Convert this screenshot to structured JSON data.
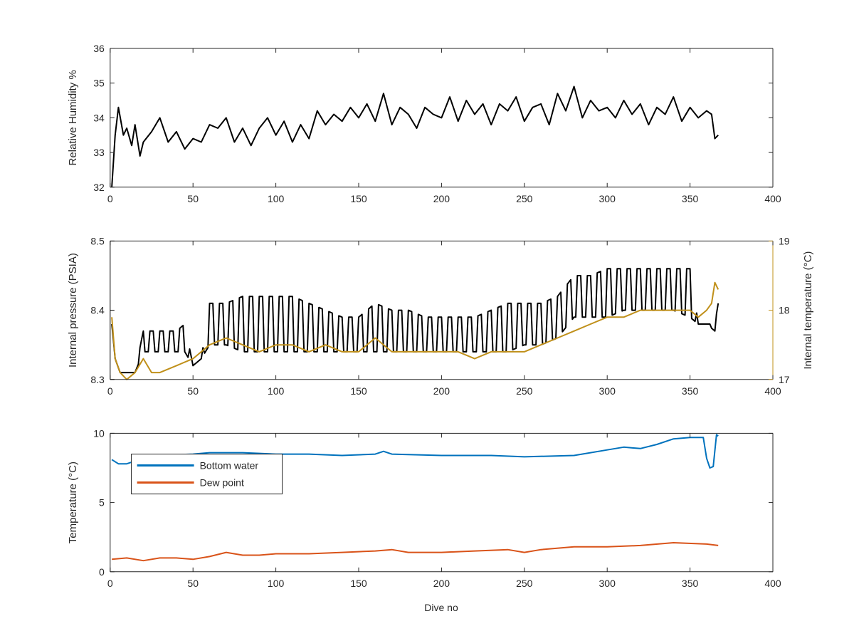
{
  "figure": {
    "xlabel": "Dive no"
  },
  "chart_data": [
    {
      "type": "line",
      "xlim": [
        0,
        400
      ],
      "ylim": [
        32,
        36
      ],
      "xticks": [
        0,
        50,
        100,
        150,
        200,
        250,
        300,
        350,
        400
      ],
      "yticks": [
        32,
        33,
        34,
        35,
        36
      ],
      "xlabel": "",
      "ylabel": "Relative Humidity %",
      "grid": false,
      "series": [
        {
          "color": "#000000",
          "x": [
            1,
            3,
            5,
            8,
            10,
            13,
            15,
            18,
            20,
            25,
            30,
            35,
            40,
            45,
            50,
            55,
            60,
            65,
            70,
            75,
            80,
            85,
            90,
            95,
            100,
            105,
            110,
            115,
            120,
            125,
            130,
            135,
            140,
            145,
            150,
            155,
            160,
            165,
            170,
            175,
            180,
            185,
            190,
            195,
            200,
            205,
            210,
            215,
            220,
            225,
            230,
            235,
            240,
            245,
            250,
            255,
            260,
            265,
            270,
            275,
            280,
            285,
            290,
            295,
            300,
            305,
            310,
            315,
            320,
            325,
            330,
            335,
            340,
            345,
            350,
            355,
            360,
            363,
            365,
            367
          ],
          "y": [
            32.0,
            33.5,
            34.3,
            33.5,
            33.7,
            33.2,
            33.8,
            32.9,
            33.3,
            33.6,
            34.0,
            33.3,
            33.6,
            33.1,
            33.4,
            33.3,
            33.8,
            33.7,
            34.0,
            33.3,
            33.7,
            33.2,
            33.7,
            34.0,
            33.5,
            33.9,
            33.3,
            33.8,
            33.4,
            34.2,
            33.8,
            34.1,
            33.9,
            34.3,
            34.0,
            34.4,
            33.9,
            34.7,
            33.8,
            34.3,
            34.1,
            33.7,
            34.3,
            34.1,
            34.0,
            34.6,
            33.9,
            34.5,
            34.1,
            34.4,
            33.8,
            34.4,
            34.2,
            34.6,
            33.9,
            34.3,
            34.4,
            33.8,
            34.7,
            34.2,
            34.9,
            34.0,
            34.5,
            34.2,
            34.3,
            34.0,
            34.5,
            34.1,
            34.4,
            33.8,
            34.3,
            34.1,
            34.6,
            33.9,
            34.3,
            34.0,
            34.2,
            34.1,
            33.4,
            33.5
          ]
        }
      ]
    },
    {
      "type": "line",
      "xlim": [
        0,
        400
      ],
      "ylim": [
        8.3,
        8.5
      ],
      "y2lim": [
        17,
        19
      ],
      "xticks": [
        0,
        50,
        100,
        150,
        200,
        250,
        300,
        350,
        400
      ],
      "yticks": [
        8.3,
        8.4,
        8.5
      ],
      "y2ticks": [
        17,
        18,
        19
      ],
      "xlabel": "",
      "ylabel": "Internal pressure (PSIA)",
      "y2label": "Internal temperature (°C)",
      "y2color": "#c0901a",
      "grid": false,
      "series": [
        {
          "axis": "left",
          "color": "#000000",
          "x": [
            1,
            3,
            6,
            10,
            15,
            20,
            30,
            40,
            45,
            50,
            55,
            60,
            70,
            80,
            90,
            100,
            110,
            120,
            130,
            140,
            150,
            160,
            170,
            180,
            190,
            200,
            210,
            220,
            230,
            240,
            250,
            260,
            270,
            280,
            290,
            300,
            310,
            320,
            330,
            340,
            350,
            355,
            360,
            365,
            367
          ],
          "upper": [
            8.38,
            8.33,
            8.31,
            8.31,
            8.31,
            8.37,
            8.37,
            8.37,
            8.38,
            8.32,
            8.33,
            8.41,
            8.41,
            8.42,
            8.42,
            8.42,
            8.42,
            8.41,
            8.4,
            8.39,
            8.39,
            8.41,
            8.4,
            8.4,
            8.39,
            8.39,
            8.39,
            8.39,
            8.4,
            8.41,
            8.41,
            8.41,
            8.42,
            8.45,
            8.45,
            8.46,
            8.46,
            8.46,
            8.46,
            8.46,
            8.46,
            8.38,
            8.38,
            8.38,
            8.41
          ],
          "lower": [
            8.38,
            8.33,
            8.31,
            8.31,
            8.31,
            8.34,
            8.34,
            8.34,
            8.34,
            8.32,
            8.33,
            8.35,
            8.35,
            8.34,
            8.34,
            8.34,
            8.34,
            8.34,
            8.34,
            8.34,
            8.34,
            8.34,
            8.34,
            8.34,
            8.34,
            8.34,
            8.34,
            8.34,
            8.34,
            8.34,
            8.35,
            8.35,
            8.36,
            8.39,
            8.39,
            8.39,
            8.4,
            8.4,
            8.4,
            8.4,
            8.39,
            8.38,
            8.38,
            8.37,
            8.38
          ]
        },
        {
          "axis": "right",
          "color": "#c0901a",
          "x": [
            1,
            3,
            6,
            10,
            15,
            20,
            25,
            30,
            40,
            50,
            60,
            70,
            80,
            90,
            100,
            110,
            120,
            130,
            140,
            150,
            160,
            170,
            180,
            190,
            200,
            210,
            220,
            230,
            240,
            250,
            260,
            270,
            280,
            290,
            300,
            310,
            320,
            330,
            340,
            350,
            355,
            360,
            363,
            365,
            367
          ],
          "y": [
            17.9,
            17.3,
            17.1,
            17.0,
            17.1,
            17.3,
            17.1,
            17.1,
            17.2,
            17.3,
            17.5,
            17.6,
            17.5,
            17.4,
            17.5,
            17.5,
            17.4,
            17.5,
            17.4,
            17.4,
            17.6,
            17.4,
            17.4,
            17.4,
            17.4,
            17.4,
            17.3,
            17.4,
            17.4,
            17.4,
            17.5,
            17.6,
            17.7,
            17.8,
            17.9,
            17.9,
            18.0,
            18.0,
            18.0,
            18.0,
            17.9,
            18.0,
            18.1,
            18.4,
            18.3
          ]
        }
      ]
    },
    {
      "type": "line",
      "xlim": [
        0,
        400
      ],
      "ylim": [
        0,
        10
      ],
      "xticks": [
        0,
        50,
        100,
        150,
        200,
        250,
        300,
        350,
        400
      ],
      "yticks": [
        0,
        5,
        10
      ],
      "xlabel": "Dive no",
      "ylabel": "Temperature (°C)",
      "grid": false,
      "legend": "top-left",
      "series": [
        {
          "name": "Bottom water",
          "color": "#0072bd",
          "x": [
            1,
            5,
            10,
            20,
            30,
            50,
            60,
            80,
            100,
            120,
            140,
            160,
            165,
            170,
            200,
            230,
            250,
            280,
            300,
            310,
            320,
            330,
            340,
            350,
            358,
            360,
            362,
            364,
            366,
            367
          ],
          "y": [
            8.1,
            7.8,
            7.8,
            8.2,
            8.4,
            8.5,
            8.6,
            8.6,
            8.5,
            8.5,
            8.4,
            8.5,
            8.7,
            8.5,
            8.4,
            8.4,
            8.3,
            8.4,
            8.8,
            9.0,
            8.9,
            9.2,
            9.6,
            9.7,
            9.7,
            8.2,
            7.5,
            7.6,
            9.9,
            9.8
          ]
        },
        {
          "name": "Dew point",
          "color": "#d95319",
          "x": [
            1,
            10,
            20,
            30,
            40,
            50,
            60,
            70,
            80,
            90,
            100,
            120,
            140,
            160,
            170,
            180,
            200,
            220,
            240,
            250,
            260,
            280,
            300,
            320,
            340,
            360,
            367
          ],
          "y": [
            0.9,
            1.0,
            0.8,
            1.0,
            1.0,
            0.9,
            1.1,
            1.4,
            1.2,
            1.2,
            1.3,
            1.3,
            1.4,
            1.5,
            1.6,
            1.4,
            1.4,
            1.5,
            1.6,
            1.4,
            1.6,
            1.8,
            1.8,
            1.9,
            2.1,
            2.0,
            1.9
          ]
        }
      ]
    }
  ]
}
